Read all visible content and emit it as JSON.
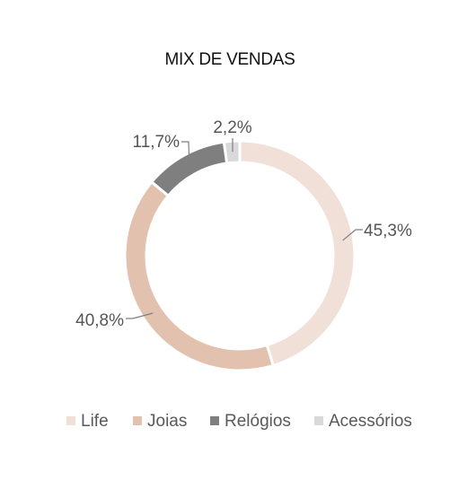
{
  "chart_data": {
    "type": "pie",
    "title": "MIX DE VENDAS",
    "categories": [
      "Life",
      "Joias",
      "Relógios",
      "Acessórios"
    ],
    "values": [
      45.3,
      40.8,
      11.7,
      2.2
    ],
    "labels": [
      "45,3%",
      "40,8%",
      "11,7%",
      "2,2%"
    ],
    "colors": [
      "#f0e0d8",
      "#e2c1ae",
      "#7f7f7f",
      "#d9d9d9"
    ],
    "legend_position": "bottom",
    "donut": true
  }
}
